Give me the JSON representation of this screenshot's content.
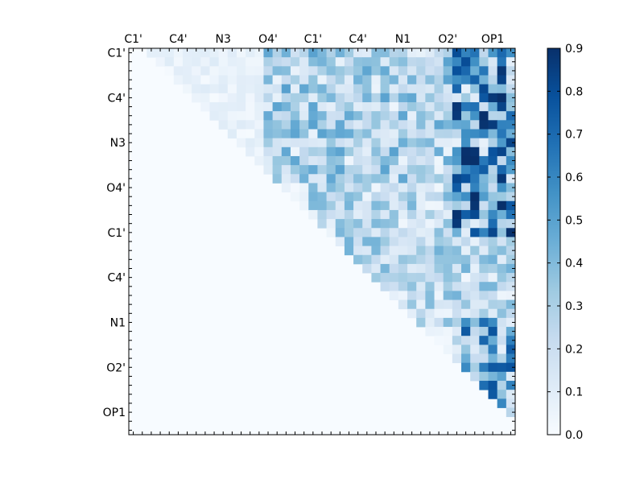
{
  "chart_data": {
    "type": "heatmap",
    "title": "",
    "xlabel": "",
    "ylabel": "",
    "labels": [
      "C1'",
      "C4'",
      "N3",
      "O4'",
      "C1'",
      "C4'",
      "N1",
      "O2'",
      "OP1"
    ],
    "label_start_index": 0,
    "label_step": 5,
    "grid_size": 43,
    "colormap": "Blues",
    "colorbar": {
      "vmin": 0.0,
      "vmax": 0.9,
      "ticks": [
        "0.0",
        "0.1",
        "0.2",
        "0.3",
        "0.4",
        "0.5",
        "0.6",
        "0.7",
        "0.8",
        "0.9"
      ]
    },
    "matrix_note": "upper-triangular matrix, values between 0.0 and 0.9 estimated from the colour scale",
    "approximate_region_values": {
      "upper_left_band_rows_0_14_cols_15_35": 0.35,
      "upper_right_band_rows_0_20_cols_36_42": 0.65,
      "middle_band_rows_15_30_cols_20_42": 0.3,
      "lower_right_band_rows_30_42_cols_36_42": 0.55,
      "lower_triangle": 0.0
    }
  }
}
